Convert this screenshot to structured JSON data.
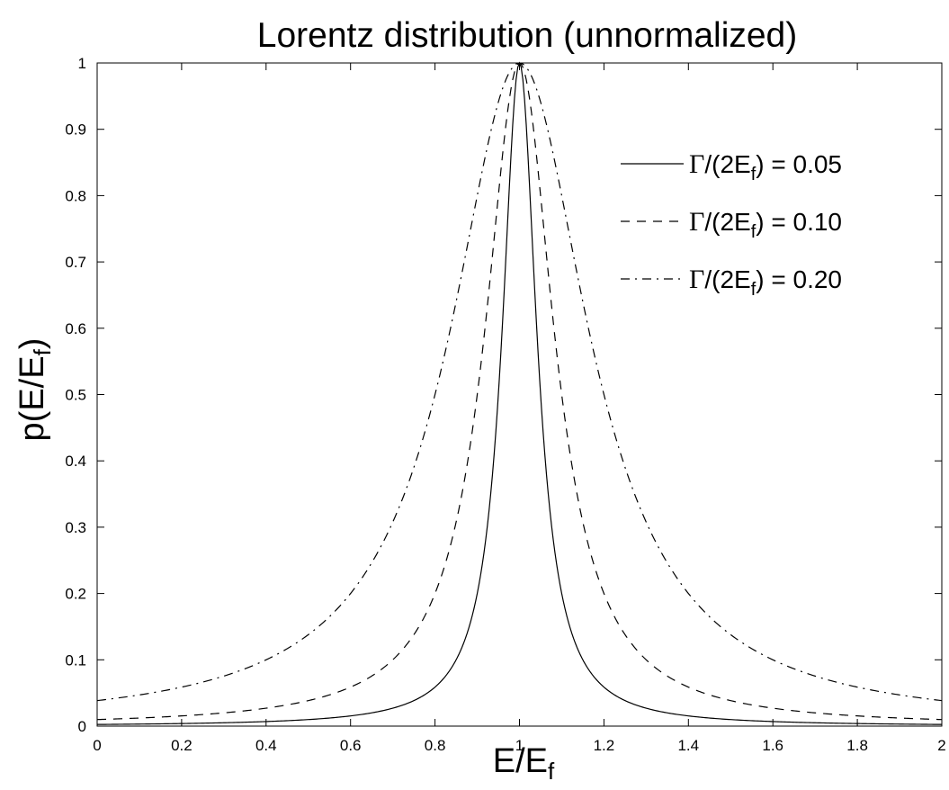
{
  "chart_data": {
    "type": "line",
    "title": "Lorentz distribution (unnormalized)",
    "xlabel": {
      "main": "E/E",
      "sub": "f"
    },
    "ylabel": {
      "main": "p(E/E",
      "sub": "f",
      "suffix": ")"
    },
    "xlim": [
      0,
      2
    ],
    "ylim": [
      0,
      1
    ],
    "xticks": [
      0,
      0.2,
      0.4,
      0.6,
      0.8,
      1,
      1.2,
      1.4,
      1.6,
      1.8,
      2
    ],
    "xtick_labels": [
      "0",
      "0.2",
      "0.4",
      "0.6",
      "0.8",
      "1",
      "1.2",
      "1.4",
      "1.6",
      "1.8",
      "2"
    ],
    "yticks": [
      0,
      0.1,
      0.2,
      0.3,
      0.4,
      0.5,
      0.6,
      0.7,
      0.8,
      0.9,
      1
    ],
    "ytick_labels": [
      "0",
      "0.1",
      "0.2",
      "0.3",
      "0.4",
      "0.5",
      "0.6",
      "0.7",
      "0.8",
      "0.9",
      "1"
    ],
    "grid": false,
    "legend_position": "top-right",
    "line_color": "#000000",
    "series": [
      {
        "label_prefix": "Γ/(2E",
        "label_sub": "f",
        "label_suffix": ") = 0.05",
        "gamma_half_width": 0.05,
        "style": "solid",
        "x": [
          0,
          0.2,
          0.4,
          0.6,
          0.8,
          0.9,
          0.95,
          1.0,
          1.05,
          1.1,
          1.2,
          1.4,
          1.6,
          1.8,
          2.0
        ],
        "y": [
          0.0025,
          0.0039,
          0.0069,
          0.0154,
          0.0588,
          0.2,
          0.5,
          1.0,
          0.5,
          0.2,
          0.0588,
          0.0154,
          0.0069,
          0.0039,
          0.0025
        ]
      },
      {
        "label_prefix": "Γ/(2E",
        "label_sub": "f",
        "label_suffix": ") = 0.10",
        "gamma_half_width": 0.1,
        "style": "dashed",
        "x": [
          0,
          0.2,
          0.4,
          0.6,
          0.8,
          0.9,
          1.0,
          1.1,
          1.2,
          1.4,
          1.6,
          1.8,
          2.0
        ],
        "y": [
          0.0099,
          0.0154,
          0.027,
          0.0588,
          0.2,
          0.5,
          1.0,
          0.5,
          0.2,
          0.0588,
          0.027,
          0.0154,
          0.0099
        ]
      },
      {
        "label_prefix": "Γ/(2E",
        "label_sub": "f",
        "label_suffix": ") = 0.20",
        "gamma_half_width": 0.2,
        "style": "dashdot",
        "x": [
          0,
          0.2,
          0.4,
          0.6,
          0.8,
          1.0,
          1.2,
          1.4,
          1.6,
          1.8,
          2.0
        ],
        "y": [
          0.0385,
          0.0588,
          0.1,
          0.2,
          0.5,
          1.0,
          0.5,
          0.2,
          0.1,
          0.0588,
          0.0385
        ]
      }
    ]
  }
}
